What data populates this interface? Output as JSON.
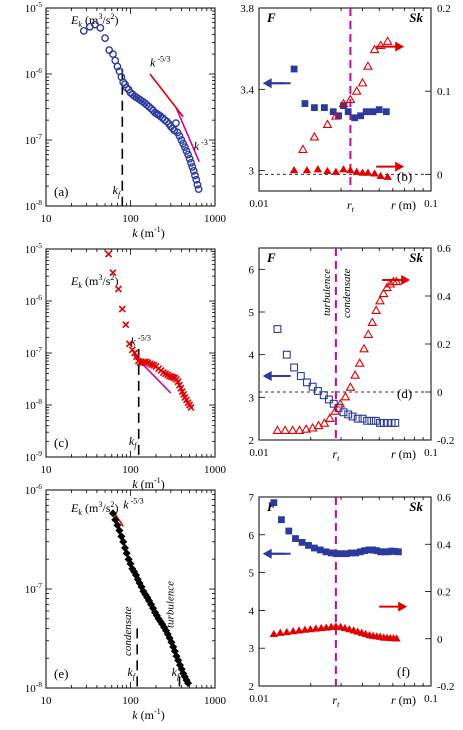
{
  "chart_data": [
    {
      "id": "a",
      "type": "scatter",
      "panel_label": "(a)",
      "x_scale": "log",
      "y_scale": "log",
      "xlim": [
        10,
        1000
      ],
      "ylim": [
        1e-08,
        1e-05
      ],
      "x_ticks": [
        "10",
        "100",
        "1000"
      ],
      "y_ticks": [
        "10-8",
        "10-7",
        "10-6",
        "10-5"
      ],
      "xlabel": "k (m-1)",
      "ylabel_inset": "Ek (m3/s2)",
      "kf_label": "kf",
      "kf_value": 80,
      "annotations": [
        {
          "text": "k -5/3",
          "x": 170,
          "y": 1.3e-06
        },
        {
          "text": "k-3",
          "x": 560,
          "y": 7e-08
        }
      ],
      "guide_lines": [
        {
          "color": "#e00000",
          "points": [
            [
              170,
              1e-06
            ],
            [
              420,
              2.25e-07
            ]
          ]
        },
        {
          "color": "#d400a8",
          "points": [
            [
              350,
              3e-07
            ],
            [
              650,
              4.7e-08
            ]
          ]
        }
      ],
      "series": [
        {
          "marker": "open-circle",
          "color": "#2b3a9e",
          "x": [
            28,
            33,
            38,
            44,
            50,
            56,
            62,
            66,
            70,
            74,
            78,
            82,
            86,
            90,
            95,
            100,
            106,
            112,
            118,
            125,
            132,
            140,
            148,
            156,
            165,
            175,
            185,
            195,
            205,
            215,
            225,
            240,
            255,
            270,
            285,
            300,
            315,
            330,
            345,
            360,
            380,
            400,
            420,
            440,
            460,
            480,
            500,
            520,
            540,
            560,
            580,
            600,
            620,
            640
          ],
          "y": [
            4.5e-06,
            5.2e-06,
            5.6e-06,
            5e-06,
            3.5e-06,
            2.3e-06,
            2e-06,
            1.6e-06,
            1.3e-06,
            1.1e-06,
            9e-07,
            7.5e-07,
            7e-07,
            6.2e-07,
            5.8e-07,
            5.2e-07,
            4.9e-07,
            4.6e-07,
            4.4e-07,
            4.2e-07,
            4e-07,
            3.8e-07,
            3.6e-07,
            3.4e-07,
            3.2e-07,
            3e-07,
            2.8e-07,
            2.6e-07,
            2.5e-07,
            2.4e-07,
            2.3e-07,
            2.15e-07,
            2e-07,
            1.9e-07,
            1.75e-07,
            1.6e-07,
            1.5e-07,
            1.4e-07,
            1.8e-07,
            1.3e-07,
            1.15e-07,
            1e-07,
            8.8e-08,
            7.8e-08,
            6.8e-08,
            6e-08,
            5.2e-08,
            4.5e-08,
            3.9e-08,
            3.4e-08,
            2.9e-08,
            2.5e-08,
            2.1e-08,
            1.8e-08
          ]
        }
      ]
    },
    {
      "id": "b",
      "type": "scatter",
      "panel_label": "(b)",
      "x_scale": "log",
      "xlim": [
        0.01,
        0.1
      ],
      "ylim_left": [
        2.9,
        3.8
      ],
      "ylim_right": [
        -0.02,
        0.2
      ],
      "x_ticks": [
        "0.01",
        "0.1"
      ],
      "y_ticks_left": [
        "3",
        "3.4",
        "3.8"
      ],
      "y_ticks_right": [
        "0",
        "0.1",
        "0.2"
      ],
      "xlabel": "r (m)",
      "rt_label": "rt",
      "rt_value": 0.034,
      "left_axis_title": "F",
      "right_axis_title": "Sk",
      "zero_line": 0,
      "series": [
        {
          "axis": "left",
          "marker": "filled-square",
          "color": "#2b3a9e",
          "x": [
            0.016,
            0.0185,
            0.021,
            0.024,
            0.027,
            0.029,
            0.031,
            0.033,
            0.036,
            0.039,
            0.042,
            0.046,
            0.05,
            0.055
          ],
          "y": [
            3.5,
            3.33,
            3.31,
            3.31,
            3.29,
            3.27,
            3.32,
            3.29,
            3.26,
            3.27,
            3.29,
            3.29,
            3.3,
            3.29
          ]
        },
        {
          "axis": "right",
          "marker": "open-triangle",
          "color": "#e00000",
          "x": [
            0.018,
            0.021,
            0.025,
            0.028,
            0.031,
            0.034,
            0.037,
            0.04,
            0.043,
            0.047,
            0.051,
            0.056
          ],
          "y": [
            0.03,
            0.045,
            0.06,
            0.07,
            0.085,
            0.09,
            0.1,
            0.11,
            0.13,
            0.15,
            0.155,
            0.16
          ]
        },
        {
          "axis": "right",
          "marker": "filled-triangle",
          "color": "#e00000",
          "x": [
            0.016,
            0.019,
            0.022,
            0.025,
            0.028,
            0.031,
            0.034,
            0.037,
            0.04,
            0.043,
            0.047,
            0.051,
            0.056
          ],
          "y": [
            0.005,
            0.005,
            0.006,
            0.004,
            0.003,
            0.006,
            0.005,
            0.003,
            0.002,
            0.002,
            0.001,
            -0.002,
            -0.003
          ]
        }
      ],
      "arrows": [
        {
          "dir": "left",
          "color": "#2b3a9e",
          "x": 0.0105,
          "y_left": 3.43
        },
        {
          "dir": "right",
          "color": "#e00000",
          "x": 0.048,
          "y_left": 3.61
        },
        {
          "dir": "right",
          "color": "#e00000",
          "x": 0.048,
          "y_left": 3.02
        }
      ]
    },
    {
      "id": "c",
      "type": "scatter",
      "panel_label": "(c)",
      "x_scale": "log",
      "y_scale": "log",
      "xlim": [
        10,
        1000
      ],
      "ylim": [
        1e-09,
        1e-05
      ],
      "x_ticks": [
        "10",
        "100",
        "1000"
      ],
      "y_ticks": [
        "10-9",
        "10-8",
        "10-7",
        "10-6",
        "10-5"
      ],
      "xlabel": "k (m-1)",
      "ylabel_inset": "Ek (m3/s2)",
      "kf_label": "kf",
      "kf_value": 125,
      "annotations": [
        {
          "text": "k-5/3",
          "x": 100,
          "y": 1.4e-07
        }
      ],
      "guide_lines": [
        {
          "color": "#d400a8",
          "points": [
            [
              110,
              9e-08
            ],
            [
              300,
              1.7e-08
            ]
          ]
        }
      ],
      "series": [
        {
          "marker": "x",
          "color": "#e00000",
          "x": [
            55,
            62,
            72,
            80,
            88,
            97,
            105,
            112,
            118,
            124,
            130,
            137,
            144,
            152,
            160,
            170,
            180,
            190,
            200,
            215,
            230,
            245,
            260,
            275,
            290,
            305,
            320,
            335,
            350,
            365,
            380,
            395,
            410,
            425,
            440,
            460,
            480,
            500,
            520
          ],
          "y": [
            8e-06,
            3.5e-06,
            1.7e-06,
            7e-07,
            3.5e-07,
            1.5e-07,
            1.15e-07,
            1e-07,
            8.5e-08,
            7e-08,
            6.5e-08,
            6.5e-08,
            6.7e-08,
            6.8e-08,
            6.5e-08,
            6.2e-08,
            6e-08,
            5.8e-08,
            5.5e-08,
            5e-08,
            4.6e-08,
            4.2e-08,
            4e-08,
            3.8e-08,
            3.6e-08,
            3.5e-08,
            3.4e-08,
            3.3e-08,
            3.1e-08,
            2.8e-08,
            2.4e-08,
            2.1e-08,
            1.8e-08,
            1.6e-08,
            1.4e-08,
            1.25e-08,
            1.1e-08,
            1e-08,
            9e-09
          ]
        }
      ]
    },
    {
      "id": "d",
      "type": "scatter",
      "panel_label": "(d)",
      "x_scale": "log",
      "xlim": [
        0.01,
        0.1
      ],
      "ylim_left": [
        2,
        6.5
      ],
      "ylim_right": [
        -0.2,
        0.6
      ],
      "x_ticks": [
        "0.01",
        "0.1"
      ],
      "y_ticks_left": [
        "2",
        "3",
        "4",
        "5",
        "6"
      ],
      "y_ticks_right": [
        "-0.2",
        "0",
        "0.2",
        "0.4",
        "0.6"
      ],
      "xlabel": "r (m)",
      "rt_label": "rt",
      "rt_value": 0.028,
      "left_axis_title": "F",
      "right_axis_title": "Sk",
      "zero_line": 0,
      "region_labels": [
        "turbulence",
        "condensate"
      ],
      "series": [
        {
          "axis": "left",
          "marker": "open-square",
          "color": "#2b3a9e",
          "x": [
            0.0128,
            0.0145,
            0.016,
            0.0175,
            0.019,
            0.0205,
            0.022,
            0.0238,
            0.0255,
            0.0272,
            0.029,
            0.031,
            0.033,
            0.035,
            0.0375,
            0.04,
            0.0425,
            0.045,
            0.0478,
            0.0505,
            0.0532,
            0.056,
            0.059,
            0.062
          ],
          "y": [
            4.6,
            4.0,
            3.7,
            3.5,
            3.35,
            3.25,
            3.15,
            3.05,
            2.95,
            2.85,
            2.75,
            2.65,
            2.6,
            2.55,
            2.5,
            2.5,
            2.45,
            2.45,
            2.45,
            2.4,
            2.4,
            2.4,
            2.4,
            2.4
          ]
        },
        {
          "axis": "right",
          "marker": "open-triangle",
          "color": "#e00000",
          "x": [
            0.0128,
            0.0142,
            0.0157,
            0.0172,
            0.0188,
            0.0205,
            0.0222,
            0.024,
            0.0258,
            0.0277,
            0.0297,
            0.0318,
            0.034,
            0.0362,
            0.0385,
            0.0408,
            0.0432,
            0.0456,
            0.048,
            0.0505,
            0.053,
            0.0555,
            0.058,
            0.0605,
            0.063
          ],
          "y": [
            -0.16,
            -0.16,
            -0.16,
            -0.16,
            -0.155,
            -0.15,
            -0.14,
            -0.13,
            -0.11,
            -0.08,
            -0.05,
            -0.02,
            0.02,
            0.07,
            0.12,
            0.18,
            0.24,
            0.29,
            0.34,
            0.38,
            0.41,
            0.435,
            0.45,
            0.46,
            0.46
          ]
        }
      ],
      "arrows": [
        {
          "dir": "left",
          "color": "#2b3a9e",
          "x": 0.0105,
          "y_left": 3.5
        },
        {
          "dir": "right",
          "color": "#e00000",
          "x": 0.052,
          "y_left": 5.75
        }
      ]
    },
    {
      "id": "e",
      "type": "scatter",
      "panel_label": "(e)",
      "x_scale": "log",
      "y_scale": "log",
      "xlim": [
        10,
        1000
      ],
      "ylim": [
        1e-08,
        1e-06
      ],
      "x_ticks": [
        "10",
        "100",
        "1000"
      ],
      "y_ticks": [
        "10-8",
        "10-7",
        "10-6"
      ],
      "xlabel": "k (m-1)",
      "ylabel_inset": "Ek (m3/s2)",
      "kf_label": "kf",
      "kf_value": 120,
      "kf2_value": 380,
      "region_labels": [
        "condensate",
        "turbulence"
      ],
      "annotations": [
        {
          "text": "k-5/3",
          "x": 82,
          "y": 6.5e-07
        }
      ],
      "guide_lines": [
        {
          "color": "#e00000",
          "points": [
            [
              62,
              6.2e-07
            ],
            [
              82,
              4.3e-07
            ]
          ]
        }
      ],
      "series": [
        {
          "marker": "filled-diamond",
          "color": "#000000",
          "x": [
            62,
            66,
            70,
            74,
            78,
            82,
            86,
            90,
            95,
            100,
            105,
            110,
            116,
            122,
            128,
            135,
            142,
            150,
            158,
            166,
            175,
            185,
            195,
            205,
            215,
            226,
            238,
            250,
            263,
            276,
            290,
            305,
            320,
            335,
            350,
            367,
            385,
            403,
            421,
            440,
            460,
            480
          ],
          "y": [
            5.8e-07,
            5e-07,
            4.4e-07,
            3.9e-07,
            3.4e-07,
            3e-07,
            2.6e-07,
            2.3e-07,
            2e-07,
            1.8e-07,
            1.6e-07,
            1.5e-07,
            1.38e-07,
            1.25e-07,
            1.15e-07,
            1.05e-07,
            9.5e-08,
            8.8e-08,
            8.2e-08,
            7.6e-08,
            7e-08,
            6.4e-08,
            5.8e-08,
            5.4e-08,
            5e-08,
            4.7e-08,
            4.4e-08,
            4.1e-08,
            3.8e-08,
            3.5e-08,
            3.2e-08,
            2.9e-08,
            2.6e-08,
            2.35e-08,
            2.1e-08,
            1.9e-08,
            1.7e-08,
            1.55e-08,
            1.4e-08,
            1.3e-08,
            1.2e-08,
            1.12e-08
          ]
        }
      ]
    },
    {
      "id": "f",
      "type": "scatter",
      "panel_label": "(f)",
      "x_scale": "log",
      "xlim": [
        0.01,
        0.1
      ],
      "ylim_left": [
        2,
        7
      ],
      "ylim_right": [
        -0.2,
        0.6
      ],
      "x_ticks": [
        "0.01",
        "0.1"
      ],
      "y_ticks_left": [
        "2",
        "3",
        "4",
        "5",
        "6",
        "7"
      ],
      "y_ticks_right": [
        "-0.2",
        "0",
        "0.2",
        "0.4",
        "0.6"
      ],
      "xlabel": "r (m)",
      "rt_label": "rt",
      "rt_value": 0.028,
      "left_axis_title": "F",
      "right_axis_title": "Sk",
      "series": [
        {
          "axis": "left",
          "marker": "filled-square",
          "color": "#2b3a9e",
          "x": [
            0.0122,
            0.0135,
            0.0149,
            0.0163,
            0.0178,
            0.0194,
            0.021,
            0.0227,
            0.0245,
            0.0263,
            0.0282,
            0.0302,
            0.0322,
            0.0343,
            0.0365,
            0.0388,
            0.0411,
            0.0435,
            0.0459,
            0.0484,
            0.051,
            0.0536,
            0.0563,
            0.059,
            0.0618,
            0.0646
          ],
          "y": [
            6.85,
            6.4,
            6.1,
            5.9,
            5.8,
            5.72,
            5.65,
            5.6,
            5.55,
            5.52,
            5.5,
            5.5,
            5.5,
            5.52,
            5.52,
            5.55,
            5.58,
            5.6,
            5.6,
            5.58,
            5.55,
            5.55,
            5.55,
            5.57,
            5.56,
            5.55
          ]
        },
        {
          "axis": "right",
          "marker": "filled-triangle",
          "color": "#e00000",
          "x": [
            0.0122,
            0.0133,
            0.0145,
            0.0158,
            0.0171,
            0.0185,
            0.0199,
            0.0214,
            0.023,
            0.0246,
            0.0263,
            0.028,
            0.0298,
            0.0316,
            0.0335,
            0.0355,
            0.0375,
            0.0396,
            0.0417,
            0.0439,
            0.0461,
            0.0484,
            0.0507,
            0.0531,
            0.0555,
            0.058,
            0.0605,
            0.063
          ],
          "y": [
            0.02,
            0.025,
            0.028,
            0.032,
            0.035,
            0.038,
            0.04,
            0.043,
            0.045,
            0.047,
            0.05,
            0.052,
            0.05,
            0.045,
            0.04,
            0.035,
            0.03,
            0.025,
            0.02,
            0.015,
            0.012,
            0.01,
            0.008,
            0.005,
            0.004,
            0.003,
            0.002,
            0.001
          ]
        }
      ],
      "arrows": [
        {
          "dir": "left",
          "color": "#2b3a9e",
          "x": 0.0105,
          "y_left": 5.5
        },
        {
          "dir": "right",
          "color": "#e00000",
          "x": 0.05,
          "y_left": 4.1
        }
      ]
    }
  ]
}
